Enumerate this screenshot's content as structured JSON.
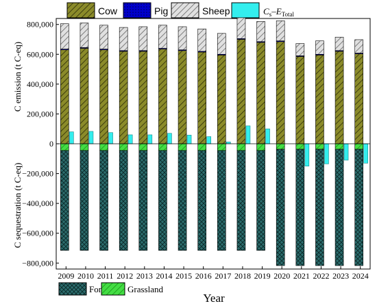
{
  "chart_data": {
    "type": "bar",
    "xlabel": "Year",
    "ylabel_top": "C emission (t C-eq)",
    "ylabel_bottom": "C sequestration (t C-eq)",
    "ylim": [
      -840000,
      840000
    ],
    "yticks": [
      -800000,
      -600000,
      -400000,
      -200000,
      0,
      200000,
      400000,
      600000,
      800000
    ],
    "ytick_labels": [
      "−800,000",
      "−600,000",
      "−400,000",
      "−200,000",
      "0",
      "200,000",
      "400,000",
      "600,000",
      "800,000"
    ],
    "categories": [
      "2009",
      "2010",
      "2011",
      "2012",
      "2013",
      "2014",
      "2015",
      "2016",
      "2017",
      "2018",
      "2019",
      "2020",
      "2021",
      "2022",
      "2023",
      "2024"
    ],
    "series": [
      {
        "name": "Cow",
        "stack": "emission",
        "color": "#8b8b2a",
        "values": [
          630000,
          640000,
          630000,
          620000,
          620000,
          635000,
          625000,
          615000,
          595000,
          700000,
          680000,
          685000,
          585000,
          595000,
          620000,
          603000
        ]
      },
      {
        "name": "Pig",
        "stack": "emission",
        "color": "#0000cc",
        "values": [
          5000,
          5000,
          5000,
          5000,
          5000,
          5000,
          5000,
          5000,
          5000,
          5000,
          5000,
          5000,
          5000,
          5000,
          5000,
          5000
        ]
      },
      {
        "name": "Sheep",
        "stack": "emission",
        "color": "#d4d4d4",
        "values": [
          170000,
          165000,
          160000,
          155000,
          160000,
          155000,
          155000,
          150000,
          140000,
          140000,
          135000,
          135000,
          82000,
          90000,
          90000,
          90000
        ]
      },
      {
        "name": "Forest",
        "stack": "sequestration",
        "color": "#2d6e6e",
        "values": [
          -670000,
          -670000,
          -670000,
          -670000,
          -670000,
          -670000,
          -670000,
          -670000,
          -670000,
          -670000,
          -670000,
          -780000,
          -780000,
          -780000,
          -780000,
          -780000
        ]
      },
      {
        "name": "Grassland",
        "stack": "sequestration",
        "color": "#44dd44",
        "values": [
          -45000,
          -45000,
          -45000,
          -45000,
          -45000,
          -45000,
          -45000,
          -45000,
          -45000,
          -45000,
          -45000,
          -37000,
          -37000,
          -37000,
          -37000,
          -37000
        ]
      }
    ],
    "net_series": {
      "name_main": "C",
      "name_sub1": "s",
      "name_mid": "–E",
      "name_sub2": "Total",
      "color": "#33eeee",
      "values": [
        80000,
        83000,
        75000,
        60000,
        60000,
        70000,
        58000,
        48000,
        12000,
        120000,
        100000,
        0,
        -150000,
        -135000,
        -110000,
        -130000
      ]
    },
    "legend_top": [
      "Cow",
      "Pig",
      "Sheep"
    ],
    "legend_bottom": [
      "Forest",
      "Grassland"
    ],
    "legend_placement": "top and bottom",
    "grid": false
  }
}
